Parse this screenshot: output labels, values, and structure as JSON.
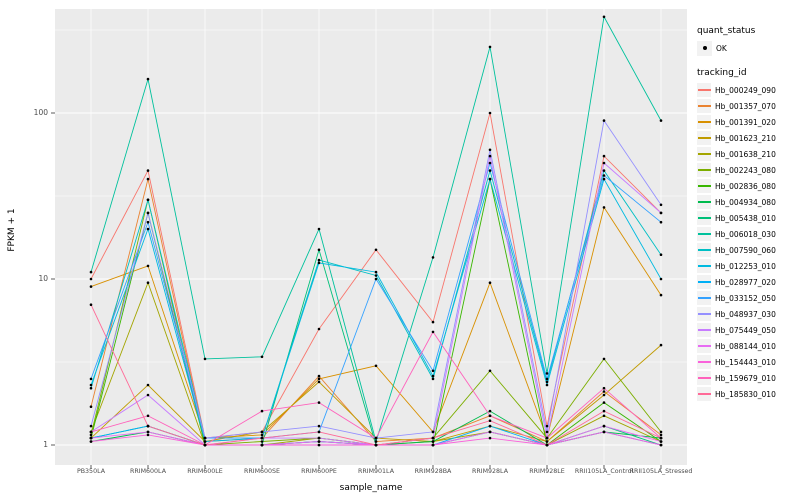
{
  "figure": {
    "xlabel": "sample_name",
    "ylabel": "FPKM + 1"
  },
  "legend": {
    "quant_status": {
      "title": "quant_status",
      "items": [
        {
          "label": "OK",
          "marker": "black-point"
        }
      ]
    },
    "tracking": {
      "title": "tracking_id"
    }
  },
  "chart_data": {
    "type": "line",
    "title": "",
    "xlabel": "sample_name",
    "ylabel": "FPKM + 1",
    "y_scale": "log10",
    "ylim": [
      0.8,
      430
    ],
    "y_ticks": [
      1,
      10,
      100
    ],
    "y_minor_ticks": [
      3.162,
      31.62,
      316.2
    ],
    "grid": true,
    "legend_position": "right",
    "panel_bg": "#EBEBEB",
    "grid_color": "#FFFFFF",
    "point_color": "#000000",
    "categories": [
      "PB350LA",
      "RRIM600LA",
      "RRIM600LE",
      "RRIM600SE",
      "RRIM600PE",
      "RRIM901LA",
      "RRIM928BA",
      "RRIM928LA",
      "RRIM928LE",
      "RRII105LA_Control",
      "RRII105LA_Stressed"
    ],
    "series": [
      {
        "name": "Hb_000249_090",
        "color": "#F8766D",
        "values": [
          10,
          45,
          1.1,
          1.2,
          5,
          15,
          5.5,
          100,
          1.3,
          55,
          25
        ]
      },
      {
        "name": "Hb_001357_070",
        "color": "#EA8331",
        "values": [
          1.7,
          40,
          1.05,
          1.1,
          2.6,
          1.05,
          1.1,
          1.5,
          1.05,
          2.1,
          1.15
        ]
      },
      {
        "name": "Hb_001391_020",
        "color": "#D89000",
        "values": [
          9,
          12,
          1.1,
          1.15,
          2.5,
          3,
          1.2,
          9.5,
          1.1,
          27,
          8
        ]
      },
      {
        "name": "Hb_001623_210",
        "color": "#C09B00",
        "values": [
          1.1,
          2.3,
          1.05,
          1.2,
          2.4,
          1.1,
          1.05,
          1.3,
          1.05,
          2,
          4
        ]
      },
      {
        "name": "Hb_001638_210",
        "color": "#A3A500",
        "values": [
          1.2,
          9.5,
          1,
          1,
          1.1,
          1,
          1.05,
          1.2,
          1,
          1.5,
          1.05
        ]
      },
      {
        "name": "Hb_002243_080",
        "color": "#7CAE00",
        "values": [
          1.15,
          30,
          1,
          1.05,
          1.1,
          1,
          1.1,
          2.8,
          1.1,
          3.3,
          1.2
        ]
      },
      {
        "name": "Hb_002836_080",
        "color": "#39B600",
        "values": [
          1.1,
          25,
          1,
          1,
          1.05,
          1,
          1,
          40,
          1,
          1.8,
          1.05
        ]
      },
      {
        "name": "Hb_004934_080",
        "color": "#00BB4E",
        "values": [
          1.05,
          1.2,
          1,
          1,
          1,
          1,
          1.05,
          1.6,
          1,
          1.2,
          1.1
        ]
      },
      {
        "name": "Hb_005438_010",
        "color": "#00C079",
        "values": [
          1.1,
          1.3,
          1,
          1,
          15,
          1,
          1,
          1.2,
          1,
          1.3,
          1
        ]
      },
      {
        "name": "Hb_006018_030",
        "color": "#00C19C",
        "values": [
          11,
          160,
          3.3,
          3.4,
          20,
          1.05,
          13.5,
          250,
          2.7,
          380,
          90
        ]
      },
      {
        "name": "Hb_007590_060",
        "color": "#00BFC4",
        "values": [
          2.2,
          30,
          1.1,
          1.1,
          13,
          10.5,
          2.5,
          45,
          2.4,
          45,
          14
        ]
      },
      {
        "name": "Hb_012253_010",
        "color": "#00BAE0",
        "values": [
          2.3,
          20,
          1.05,
          1.1,
          12.5,
          11,
          2.6,
          40,
          2.3,
          40,
          10
        ]
      },
      {
        "name": "Hb_028977_020",
        "color": "#00B0F6",
        "values": [
          1.1,
          1.3,
          1,
          1,
          1.05,
          1,
          1,
          1.3,
          1,
          1.2,
          1
        ]
      },
      {
        "name": "Hb_033152_050",
        "color": "#35A2FF",
        "values": [
          2.5,
          22,
          1.1,
          1.1,
          1.2,
          10,
          2.8,
          50,
          2.5,
          42,
          22
        ]
      },
      {
        "name": "Hb_048937_030",
        "color": "#9590FF",
        "values": [
          1.3,
          25,
          1.1,
          1.2,
          1.3,
          1.1,
          1.2,
          60,
          1.2,
          90,
          28
        ]
      },
      {
        "name": "Hb_075449_050",
        "color": "#C77CFF",
        "values": [
          1.2,
          2,
          1,
          1.1,
          1.1,
          1,
          1.1,
          55,
          1.1,
          50,
          25
        ]
      },
      {
        "name": "Hb_088144_010",
        "color": "#E76BF3",
        "values": [
          1.1,
          1.2,
          1,
          1,
          1.05,
          1,
          1,
          1.2,
          1,
          1.3,
          1.05
        ]
      },
      {
        "name": "Hb_154443_010",
        "color": "#FA62DB",
        "values": [
          1.05,
          1.15,
          1,
          1,
          1,
          1,
          1,
          1.1,
          1,
          1.2,
          1
        ]
      },
      {
        "name": "Hb_159679_010",
        "color": "#FF62BC",
        "values": [
          1.2,
          1.5,
          1,
          1.6,
          1.8,
          1.1,
          4.8,
          1.5,
          1.1,
          2.2,
          1.1
        ]
      },
      {
        "name": "Hb_185830_010",
        "color": "#FF6A98",
        "values": [
          7,
          1.3,
          1,
          1.1,
          1.2,
          1,
          1.1,
          1.4,
          1,
          1.6,
          1.1
        ]
      }
    ]
  }
}
